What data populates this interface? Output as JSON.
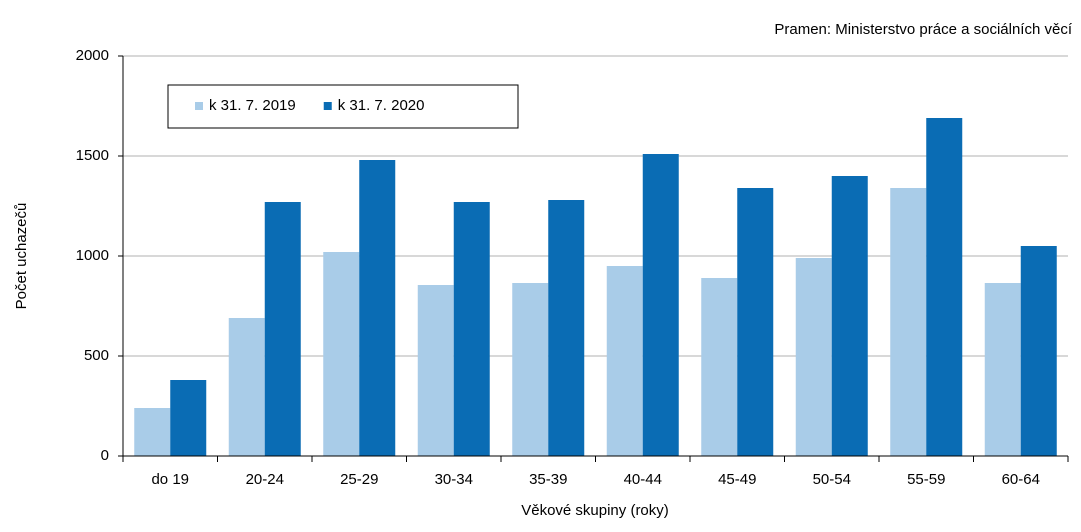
{
  "chart_data": {
    "type": "bar",
    "source": "Pramen: Ministerstvo práce a sociálních věcí",
    "y_label": "Počet uchazečů",
    "x_label": "Věkové skupiny (roky)",
    "categories": [
      "do 19",
      "20-24",
      "25-29",
      "30-34",
      "35-39",
      "40-44",
      "45-49",
      "50-54",
      "55-59",
      "60-64"
    ],
    "series": [
      {
        "name": "k 31. 7. 2019",
        "color": "#a9cce8",
        "values": [
          240,
          690,
          1020,
          855,
          865,
          950,
          890,
          990,
          1340,
          865
        ]
      },
      {
        "name": "k 31. 7. 2020",
        "color": "#0a6cb4",
        "values": [
          380,
          1270,
          1480,
          1270,
          1280,
          1510,
          1340,
          1400,
          1690,
          1050
        ]
      }
    ],
    "ylim": [
      0,
      2000
    ],
    "yticks": [
      0,
      500,
      1000,
      1500,
      2000
    ],
    "grid": true,
    "legend": "top-left"
  }
}
